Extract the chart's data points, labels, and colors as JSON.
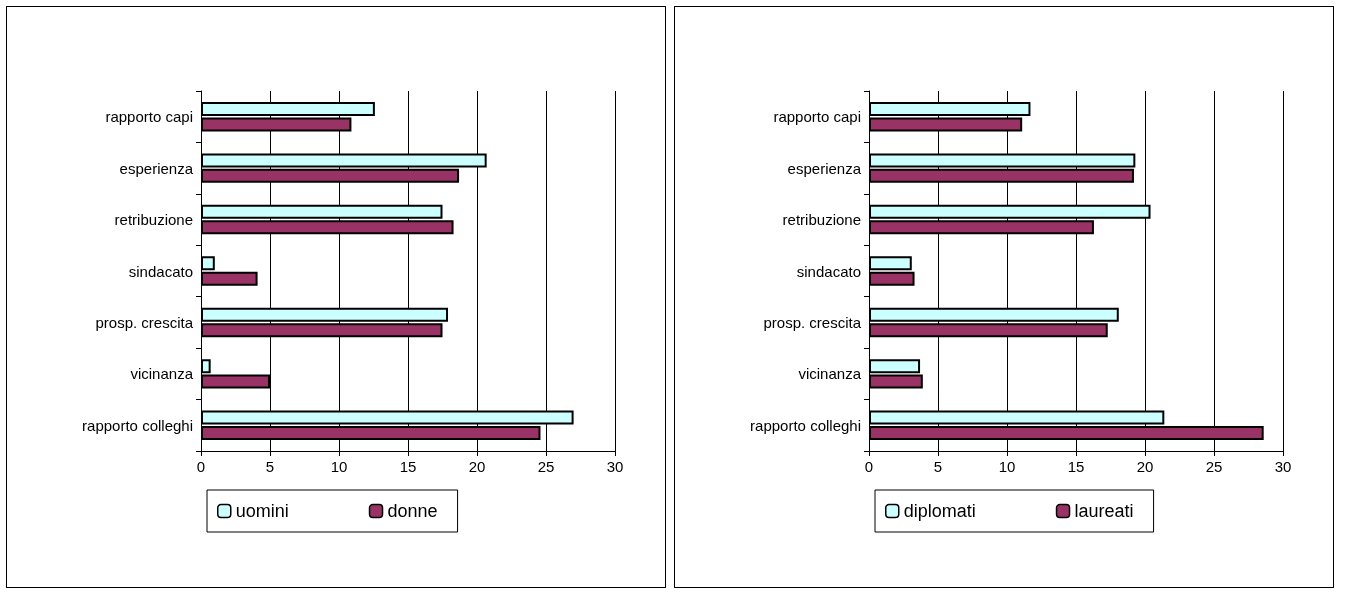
{
  "chart_data": [
    {
      "type": "bar",
      "orientation": "horizontal",
      "categories": [
        "rapporto capi",
        "esperienza",
        "retribuzione",
        "sindacato",
        "prosp. crescita",
        "vicinanza",
        "rapporto colleghi"
      ],
      "series": [
        {
          "name": "uomini",
          "color": "#ccffff",
          "values": [
            12.6,
            20.7,
            17.5,
            1.0,
            17.9,
            0.7,
            27.0
          ]
        },
        {
          "name": "donne",
          "color": "#993366",
          "values": [
            10.9,
            18.7,
            18.3,
            4.1,
            17.5,
            5.0,
            24.6
          ]
        }
      ],
      "xlim": [
        0,
        30
      ],
      "xticks": [
        0,
        5,
        10,
        15,
        20,
        25,
        30
      ],
      "grid": "x",
      "legend": "bottom"
    },
    {
      "type": "bar",
      "orientation": "horizontal",
      "categories": [
        "rapporto capi",
        "esperienza",
        "retribuzione",
        "sindacato",
        "prosp. crescita",
        "vicinanza",
        "rapporto colleghi"
      ],
      "series": [
        {
          "name": "diplomati",
          "color": "#ccffff",
          "values": [
            11.7,
            19.3,
            20.4,
            3.1,
            18.1,
            3.7,
            21.4
          ]
        },
        {
          "name": "laureati",
          "color": "#993366",
          "values": [
            11.1,
            19.2,
            16.3,
            3.3,
            17.3,
            3.9,
            28.6
          ]
        }
      ],
      "xlim": [
        0,
        30
      ],
      "xticks": [
        0,
        5,
        10,
        15,
        20,
        25,
        30
      ],
      "grid": "x",
      "legend": "bottom"
    }
  ]
}
